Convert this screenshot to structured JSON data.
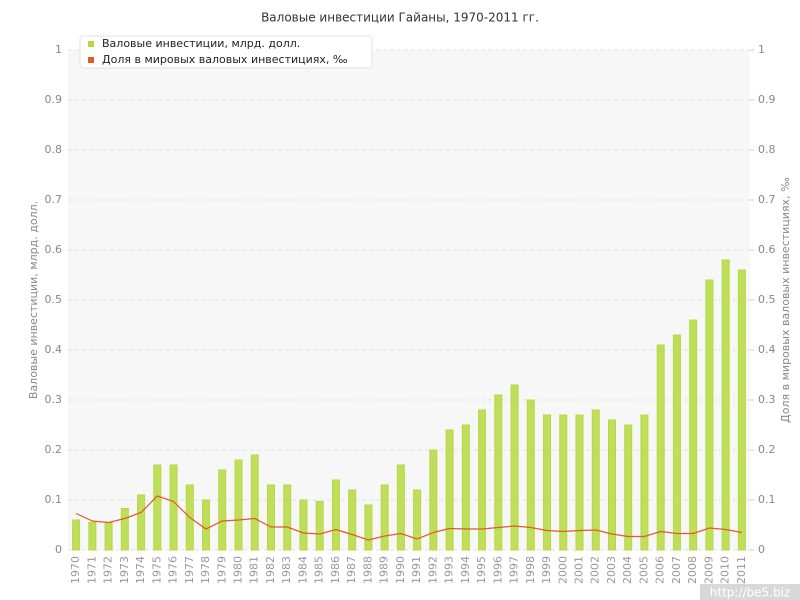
{
  "chart_data": {
    "type": "bar",
    "title": "Валовые инвестиции Гайаны, 1970-2011 гг.",
    "ylabel": "Валовые инвестиции, млрд. долл.",
    "y2label": "Доля в мировых валовых инвестициях, ‰",
    "categories": [
      "1970",
      "1971",
      "1972",
      "1973",
      "1974",
      "1975",
      "1976",
      "1977",
      "1978",
      "1979",
      "1980",
      "1981",
      "1982",
      "1983",
      "1984",
      "1985",
      "1986",
      "1987",
      "1988",
      "1989",
      "1990",
      "1991",
      "1992",
      "1993",
      "1994",
      "1995",
      "1996",
      "1997",
      "1998",
      "1999",
      "2000",
      "2001",
      "2002",
      "2003",
      "2004",
      "2005",
      "2006",
      "2007",
      "2008",
      "2009",
      "2010",
      "2011"
    ],
    "series": [
      {
        "name": "Валовые инвестиции, млрд. долл.",
        "type": "bar",
        "color": "#b5d93f",
        "values": [
          0.06,
          0.055,
          0.055,
          0.083,
          0.11,
          0.17,
          0.17,
          0.13,
          0.1,
          0.16,
          0.18,
          0.19,
          0.13,
          0.13,
          0.1,
          0.097,
          0.14,
          0.12,
          0.09,
          0.13,
          0.17,
          0.12,
          0.2,
          0.24,
          0.25,
          0.28,
          0.31,
          0.33,
          0.3,
          0.27,
          0.27,
          0.27,
          0.28,
          0.26,
          0.25,
          0.27,
          0.41,
          0.43,
          0.46,
          0.54,
          0.58,
          0.56
        ]
      },
      {
        "name": "Доля в мировых валовых инвестициях, ‰",
        "type": "line",
        "axis": "y2",
        "color": "#e05a2b",
        "values": [
          0.073,
          0.058,
          0.055,
          0.063,
          0.075,
          0.108,
          0.097,
          0.065,
          0.042,
          0.058,
          0.06,
          0.063,
          0.046,
          0.046,
          0.034,
          0.032,
          0.041,
          0.031,
          0.02,
          0.028,
          0.033,
          0.022,
          0.035,
          0.043,
          0.042,
          0.042,
          0.045,
          0.048,
          0.045,
          0.039,
          0.037,
          0.039,
          0.04,
          0.032,
          0.027,
          0.027,
          0.037,
          0.033,
          0.033,
          0.044,
          0.041,
          0.035
        ]
      }
    ],
    "ylim": [
      0,
      1
    ],
    "yticks": [
      0,
      0.1,
      0.2,
      0.3,
      0.4,
      0.5,
      0.6,
      0.7,
      0.8,
      0.9,
      1
    ],
    "y2lim": [
      0,
      1
    ],
    "y2ticks": [
      0,
      0.1,
      0.2,
      0.3,
      0.4,
      0.5,
      0.6,
      0.7,
      0.8,
      0.9,
      1
    ],
    "grid": true,
    "legend": "top-left",
    "watermark": "http://be5.biz"
  }
}
